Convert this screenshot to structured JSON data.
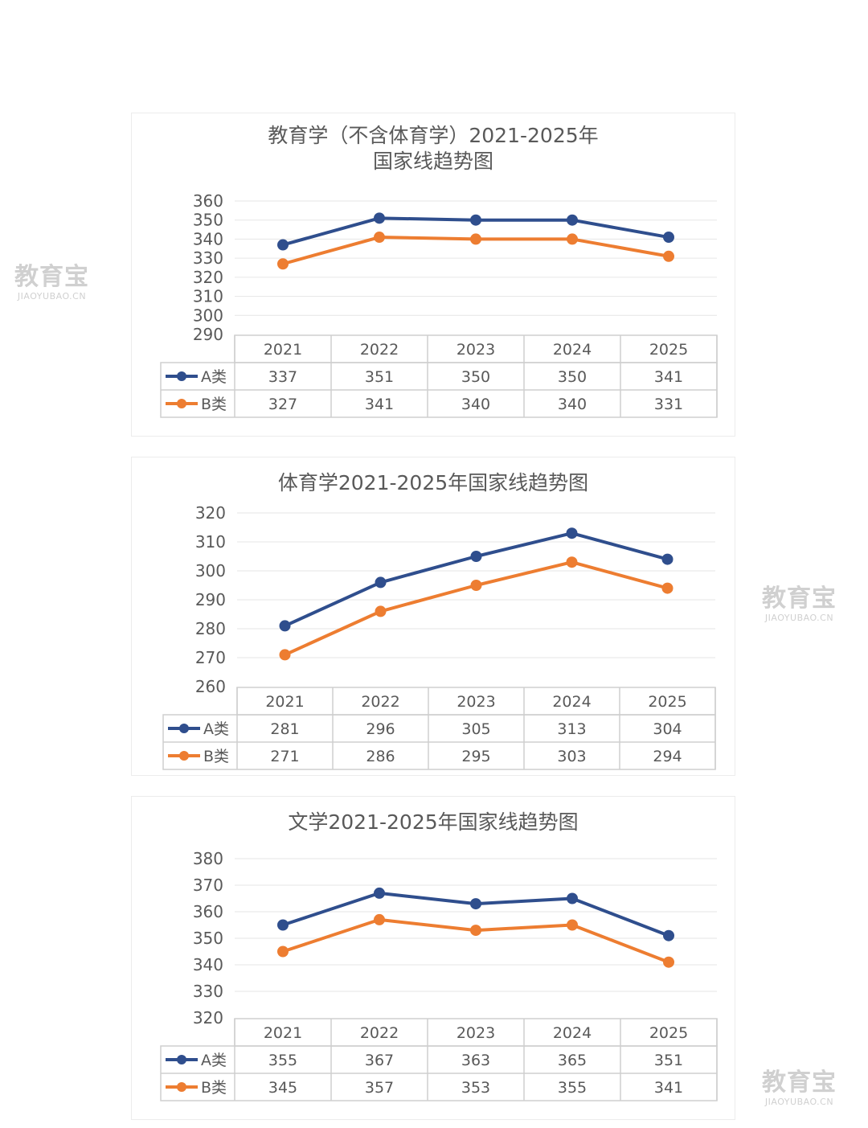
{
  "watermark": {
    "logo": "教育宝",
    "url": "JIAOYUBAO.CN"
  },
  "colors": {
    "series_a": "#2f4e8d",
    "series_b": "#ed7d31",
    "grid": "#e6e6e6",
    "table_border": "#cfcfcf",
    "text": "#595959"
  },
  "chart_data": [
    {
      "type": "line",
      "title": "教育学（不含体育学）2021-2025年",
      "subtitle": "国家线趋势图",
      "categories": [
        "2021",
        "2022",
        "2023",
        "2024",
        "2025"
      ],
      "series": [
        {
          "name": "A类",
          "values": [
            337,
            351,
            350,
            350,
            341
          ],
          "color": "#2f4e8d"
        },
        {
          "name": "B类",
          "values": [
            327,
            341,
            340,
            340,
            331
          ],
          "color": "#ed7d31"
        }
      ],
      "yticks": [
        360,
        350,
        340,
        330,
        320,
        310,
        300,
        290
      ],
      "ylim": [
        290,
        360
      ],
      "grid": true,
      "legend": "data-table"
    },
    {
      "type": "line",
      "title": "体育学2021-2025年国家线趋势图",
      "categories": [
        "2021",
        "2022",
        "2023",
        "2024",
        "2025"
      ],
      "series": [
        {
          "name": "A类",
          "values": [
            281,
            296,
            305,
            313,
            304
          ],
          "color": "#2f4e8d"
        },
        {
          "name": "B类",
          "values": [
            271,
            286,
            295,
            303,
            294
          ],
          "color": "#ed7d31"
        }
      ],
      "yticks": [
        320,
        310,
        300,
        290,
        280,
        270,
        260
      ],
      "ylim": [
        260,
        320
      ],
      "grid": true,
      "legend": "data-table"
    },
    {
      "type": "line",
      "title": "文学2021-2025年国家线趋势图",
      "categories": [
        "2021",
        "2022",
        "2023",
        "2024",
        "2025"
      ],
      "series": [
        {
          "name": "A类",
          "values": [
            355,
            367,
            363,
            365,
            351
          ],
          "color": "#2f4e8d"
        },
        {
          "name": "B类",
          "values": [
            345,
            357,
            353,
            355,
            341
          ],
          "color": "#ed7d31"
        }
      ],
      "yticks": [
        380,
        370,
        360,
        350,
        340,
        330,
        320
      ],
      "ylim": [
        320,
        380
      ],
      "grid": true,
      "legend": "data-table"
    }
  ]
}
